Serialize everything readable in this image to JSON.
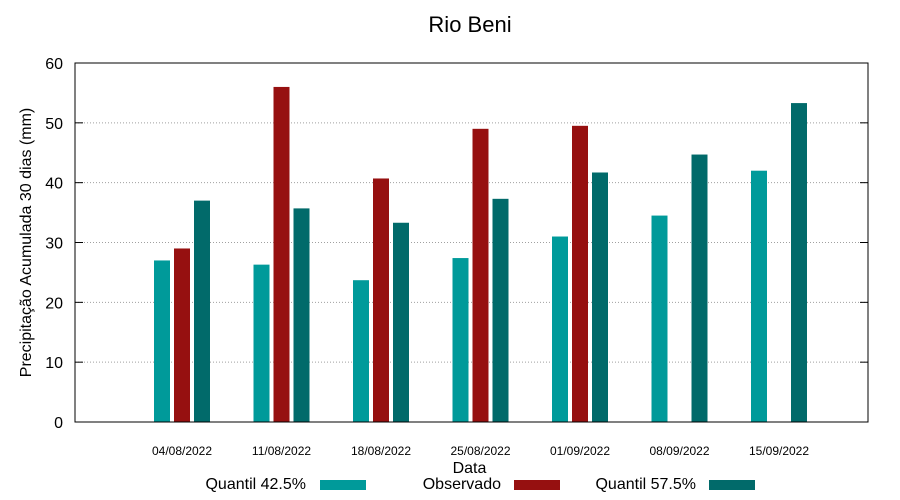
{
  "chart_data": {
    "type": "bar",
    "title": "Rio Beni",
    "xlabel": "Data",
    "ylabel": "Precipitação Acumulada 30 dias (mm)",
    "ylim": [
      0,
      60
    ],
    "yticks": [
      0,
      10,
      20,
      30,
      40,
      50,
      60
    ],
    "grid": true,
    "legend_position": "bottom",
    "categories": [
      "04/08/2022",
      "11/08/2022",
      "18/08/2022",
      "25/08/2022",
      "01/09/2022",
      "08/09/2022",
      "15/09/2022"
    ],
    "series": [
      {
        "name": "Quantil 42.5%",
        "color": "#009a9a",
        "values": [
          27,
          26.3,
          23.7,
          27.4,
          31,
          34.5,
          42
        ]
      },
      {
        "name": "Observado",
        "color": "#961010",
        "values": [
          29,
          56,
          40.7,
          49,
          49.5,
          null,
          null
        ]
      },
      {
        "name": "Quantil 57.5%",
        "color": "#016a6a",
        "values": [
          37,
          35.7,
          33.3,
          37.3,
          41.7,
          44.7,
          53.3
        ]
      }
    ]
  }
}
